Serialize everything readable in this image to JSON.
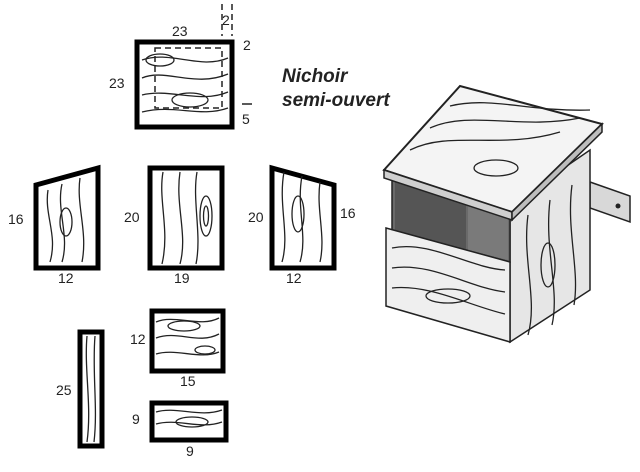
{
  "title": {
    "line1": "Nichoir",
    "line2": "semi-ouvert"
  },
  "pieces": {
    "roof": {
      "width": "23",
      "height": "23",
      "overhang_top": "2",
      "overhang_side": "2",
      "offset_bottom": "5"
    },
    "side_left": {
      "height": "16",
      "width": "12"
    },
    "back": {
      "height": "20",
      "width": "19"
    },
    "side_right": {
      "height_back": "20",
      "height_front": "16",
      "width": "12"
    },
    "post": {
      "height": "25"
    },
    "front": {
      "height": "12",
      "width": "15"
    },
    "bottom": {
      "height": "9",
      "width": "9"
    }
  }
}
